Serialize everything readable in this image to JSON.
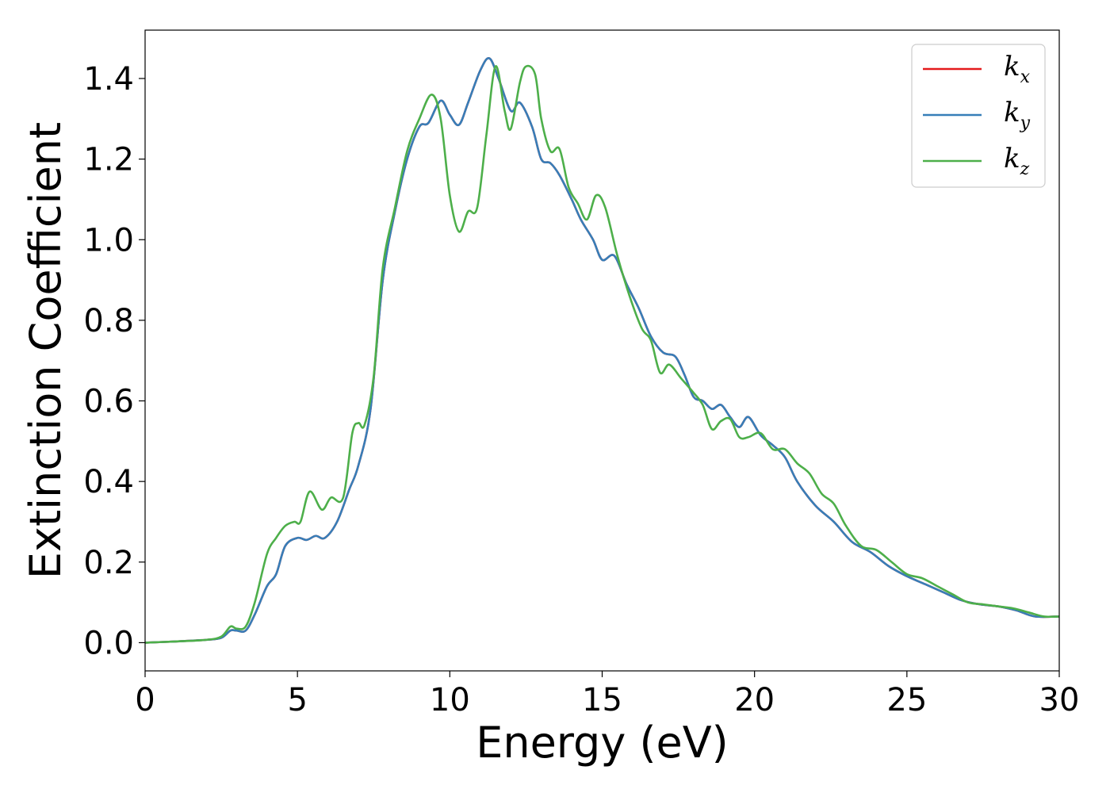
{
  "chart_data": {
    "type": "line",
    "title": "",
    "xlabel": "Energy (eV)",
    "ylabel": "Extinction Coefficient",
    "xlim": [
      0,
      30
    ],
    "ylim": [
      -0.07,
      1.52
    ],
    "xticks": [
      0,
      5,
      10,
      15,
      20,
      25,
      30
    ],
    "xtick_labels": [
      "0",
      "5",
      "10",
      "15",
      "20",
      "25",
      "30"
    ],
    "yticks": [
      0.0,
      0.2,
      0.4,
      0.6,
      0.8,
      1.0,
      1.2,
      1.4
    ],
    "ytick_labels": [
      "0.0",
      "0.2",
      "0.4",
      "0.6",
      "0.8",
      "1.0",
      "1.2",
      "1.4"
    ],
    "grid": false,
    "legend_position": "top-right",
    "series": [
      {
        "name": "k_x",
        "legend_base": "k",
        "legend_sub": "x",
        "color": "#e41a1c",
        "x": [
          0,
          1,
          2,
          2.5,
          2.8,
          3.0,
          3.3,
          3.6,
          4.0,
          4.3,
          4.6,
          5.0,
          5.3,
          5.6,
          5.9,
          6.3,
          6.7,
          7.0,
          7.4,
          7.8,
          8.2,
          8.6,
          9.0,
          9.3,
          9.7,
          10.0,
          10.3,
          10.6,
          11.0,
          11.3,
          11.6,
          12.0,
          12.3,
          12.7,
          13.0,
          13.3,
          13.6,
          14.0,
          14.3,
          14.7,
          15.0,
          15.4,
          15.8,
          16.2,
          16.6,
          17.0,
          17.4,
          17.7,
          18.0,
          18.3,
          18.6,
          18.9,
          19.2,
          19.5,
          19.8,
          20.2,
          20.6,
          21.0,
          21.4,
          22.0,
          22.6,
          23.2,
          23.8,
          24.4,
          25.0,
          25.6,
          26.2,
          26.8,
          27.4,
          28.0,
          28.6,
          29.2,
          30.0
        ],
        "y": [
          0.0,
          0.003,
          0.007,
          0.012,
          0.03,
          0.03,
          0.03,
          0.07,
          0.14,
          0.17,
          0.24,
          0.26,
          0.255,
          0.265,
          0.26,
          0.3,
          0.38,
          0.44,
          0.58,
          0.9,
          1.07,
          1.2,
          1.28,
          1.29,
          1.345,
          1.31,
          1.285,
          1.34,
          1.42,
          1.45,
          1.4,
          1.32,
          1.34,
          1.28,
          1.2,
          1.19,
          1.16,
          1.1,
          1.05,
          1.0,
          0.95,
          0.96,
          0.89,
          0.83,
          0.76,
          0.72,
          0.71,
          0.665,
          0.61,
          0.6,
          0.58,
          0.59,
          0.56,
          0.535,
          0.56,
          0.515,
          0.49,
          0.46,
          0.4,
          0.34,
          0.3,
          0.25,
          0.225,
          0.19,
          0.165,
          0.145,
          0.125,
          0.105,
          0.095,
          0.09,
          0.08,
          0.065,
          0.065
        ]
      },
      {
        "name": "k_y",
        "legend_base": "k",
        "legend_sub": "y",
        "color": "#377eb8",
        "x": [
          0,
          1,
          2,
          2.5,
          2.8,
          3.0,
          3.3,
          3.6,
          4.0,
          4.3,
          4.6,
          5.0,
          5.3,
          5.6,
          5.9,
          6.3,
          6.7,
          7.0,
          7.4,
          7.8,
          8.2,
          8.6,
          9.0,
          9.3,
          9.7,
          10.0,
          10.3,
          10.6,
          11.0,
          11.3,
          11.6,
          12.0,
          12.3,
          12.7,
          13.0,
          13.3,
          13.6,
          14.0,
          14.3,
          14.7,
          15.0,
          15.4,
          15.8,
          16.2,
          16.6,
          17.0,
          17.4,
          17.7,
          18.0,
          18.3,
          18.6,
          18.9,
          19.2,
          19.5,
          19.8,
          20.2,
          20.6,
          21.0,
          21.4,
          22.0,
          22.6,
          23.2,
          23.8,
          24.4,
          25.0,
          25.6,
          26.2,
          26.8,
          27.4,
          28.0,
          28.6,
          29.2,
          30.0
        ],
        "y": [
          0.0,
          0.003,
          0.007,
          0.012,
          0.03,
          0.03,
          0.03,
          0.07,
          0.14,
          0.17,
          0.24,
          0.26,
          0.255,
          0.265,
          0.26,
          0.3,
          0.38,
          0.44,
          0.58,
          0.9,
          1.07,
          1.2,
          1.28,
          1.29,
          1.345,
          1.31,
          1.285,
          1.34,
          1.42,
          1.45,
          1.4,
          1.32,
          1.34,
          1.28,
          1.2,
          1.19,
          1.16,
          1.1,
          1.05,
          1.0,
          0.95,
          0.96,
          0.89,
          0.83,
          0.76,
          0.72,
          0.71,
          0.665,
          0.61,
          0.6,
          0.58,
          0.59,
          0.56,
          0.535,
          0.56,
          0.515,
          0.49,
          0.46,
          0.4,
          0.34,
          0.3,
          0.25,
          0.225,
          0.19,
          0.165,
          0.145,
          0.125,
          0.105,
          0.095,
          0.09,
          0.08,
          0.065,
          0.065
        ]
      },
      {
        "name": "k_z",
        "legend_base": "k",
        "legend_sub": "z",
        "color": "#4daf4a",
        "x": [
          0,
          1,
          2,
          2.5,
          2.8,
          3.0,
          3.3,
          3.6,
          4.0,
          4.3,
          4.6,
          4.9,
          5.1,
          5.4,
          5.8,
          6.1,
          6.5,
          6.8,
          7.0,
          7.2,
          7.5,
          7.8,
          8.2,
          8.6,
          9.0,
          9.4,
          9.7,
          10.0,
          10.3,
          10.6,
          10.9,
          11.2,
          11.5,
          11.8,
          12.0,
          12.3,
          12.5,
          12.8,
          13.0,
          13.3,
          13.6,
          13.9,
          14.2,
          14.5,
          14.8,
          15.1,
          15.5,
          15.9,
          16.3,
          16.6,
          16.9,
          17.2,
          17.6,
          18.0,
          18.3,
          18.6,
          18.9,
          19.2,
          19.5,
          19.8,
          20.2,
          20.6,
          21.0,
          21.4,
          21.8,
          22.2,
          22.6,
          23.0,
          23.5,
          24.0,
          24.5,
          25.0,
          25.5,
          26.0,
          26.5,
          27.0,
          27.5,
          28.0,
          28.5,
          29.0,
          29.5,
          30.0
        ],
        "y": [
          0.0,
          0.003,
          0.007,
          0.015,
          0.04,
          0.035,
          0.04,
          0.1,
          0.22,
          0.26,
          0.29,
          0.3,
          0.3,
          0.375,
          0.33,
          0.36,
          0.36,
          0.52,
          0.545,
          0.54,
          0.66,
          0.93,
          1.08,
          1.22,
          1.3,
          1.36,
          1.3,
          1.11,
          1.02,
          1.07,
          1.08,
          1.26,
          1.43,
          1.32,
          1.275,
          1.39,
          1.43,
          1.41,
          1.3,
          1.22,
          1.225,
          1.13,
          1.09,
          1.05,
          1.11,
          1.08,
          0.96,
          0.86,
          0.78,
          0.75,
          0.67,
          0.69,
          0.655,
          0.62,
          0.59,
          0.53,
          0.55,
          0.555,
          0.51,
          0.51,
          0.52,
          0.48,
          0.48,
          0.445,
          0.42,
          0.37,
          0.345,
          0.29,
          0.24,
          0.23,
          0.2,
          0.17,
          0.16,
          0.14,
          0.12,
          0.1,
          0.095,
          0.09,
          0.085,
          0.075,
          0.065,
          0.065
        ]
      }
    ]
  }
}
